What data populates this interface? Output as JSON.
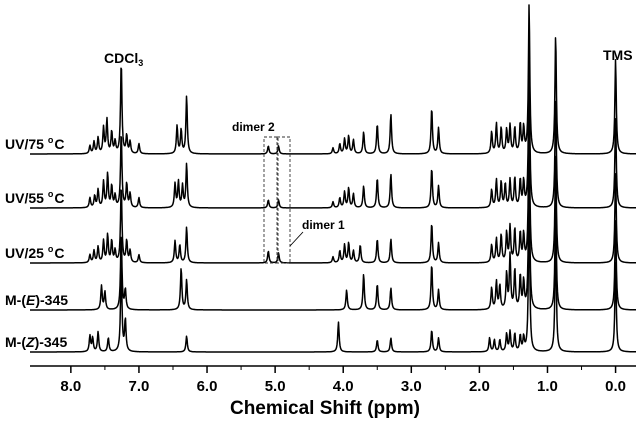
{
  "chart_data": {
    "type": "line",
    "xlabel": "Chemical Shift (ppm)",
    "xlim": [
      8.6,
      -0.3
    ],
    "x_ticks": [
      "8.0",
      "7.0",
      "6.0",
      "5.0",
      "4.0",
      "3.0",
      "2.0",
      "1.0",
      "0.0"
    ],
    "x_tick_values": [
      8.0,
      7.0,
      6.0,
      5.0,
      4.0,
      3.0,
      2.0,
      1.0,
      0.0
    ],
    "reference_labels": {
      "solvent": "CDCl",
      "solvent_subscript": "3",
      "standard": "TMS"
    },
    "annotations": {
      "dimer1": "dimer 1",
      "dimer2": "dimer 2"
    },
    "series": [
      {
        "name": "UV/75 °C",
        "label_main": "UV/75 ",
        "label_deg": "o",
        "label_unit": "C",
        "peaks": [
          [
            7.72,
            8
          ],
          [
            7.66,
            12
          ],
          [
            7.6,
            16
          ],
          [
            7.52,
            26
          ],
          [
            7.47,
            34
          ],
          [
            7.4,
            22
          ],
          [
            7.35,
            12
          ],
          [
            7.26,
            92
          ],
          [
            7.18,
            18
          ],
          [
            7.13,
            12
          ],
          [
            7.0,
            10
          ],
          [
            6.44,
            28
          ],
          [
            6.38,
            24
          ],
          [
            6.3,
            58
          ],
          [
            5.1,
            8
          ],
          [
            4.95,
            8
          ],
          [
            4.15,
            6
          ],
          [
            4.05,
            10
          ],
          [
            3.98,
            15
          ],
          [
            3.92,
            18
          ],
          [
            3.85,
            14
          ],
          [
            3.7,
            22
          ],
          [
            3.5,
            30
          ],
          [
            3.3,
            40
          ],
          [
            2.7,
            46
          ],
          [
            2.6,
            26
          ],
          [
            1.82,
            22
          ],
          [
            1.75,
            30
          ],
          [
            1.68,
            26
          ],
          [
            1.6,
            24
          ],
          [
            1.55,
            28
          ],
          [
            1.48,
            26
          ],
          [
            1.4,
            30
          ],
          [
            1.35,
            26
          ],
          [
            1.27,
            150
          ],
          [
            0.88,
            120
          ],
          [
            0.0,
            95
          ]
        ]
      },
      {
        "name": "UV/55 °C",
        "label_main": "UV/55 ",
        "label_deg": "o",
        "label_unit": "C",
        "peaks": [
          [
            7.72,
            10
          ],
          [
            7.65,
            12
          ],
          [
            7.6,
            18
          ],
          [
            7.52,
            26
          ],
          [
            7.46,
            34
          ],
          [
            7.4,
            22
          ],
          [
            7.35,
            12
          ],
          [
            7.26,
            76
          ],
          [
            7.18,
            24
          ],
          [
            7.13,
            14
          ],
          [
            7.0,
            10
          ],
          [
            6.47,
            24
          ],
          [
            6.42,
            26
          ],
          [
            6.36,
            22
          ],
          [
            6.3,
            44
          ],
          [
            5.1,
            8
          ],
          [
            4.95,
            8
          ],
          [
            4.15,
            6
          ],
          [
            4.05,
            10
          ],
          [
            3.98,
            16
          ],
          [
            3.92,
            20
          ],
          [
            3.85,
            14
          ],
          [
            3.7,
            22
          ],
          [
            3.5,
            30
          ],
          [
            3.3,
            34
          ],
          [
            2.7,
            40
          ],
          [
            2.6,
            22
          ],
          [
            1.82,
            18
          ],
          [
            1.75,
            28
          ],
          [
            1.68,
            26
          ],
          [
            1.62,
            24
          ],
          [
            1.55,
            28
          ],
          [
            1.48,
            30
          ],
          [
            1.4,
            28
          ],
          [
            1.35,
            26
          ],
          [
            1.27,
            150
          ],
          [
            0.88,
            110
          ],
          [
            0.0,
            90
          ]
        ]
      },
      {
        "name": "UV/25 °C",
        "label_main": "UV/25 ",
        "label_deg": "o",
        "label_unit": "C",
        "peaks": [
          [
            7.72,
            8
          ],
          [
            7.66,
            12
          ],
          [
            7.6,
            16
          ],
          [
            7.52,
            22
          ],
          [
            7.46,
            28
          ],
          [
            7.4,
            22
          ],
          [
            7.35,
            12
          ],
          [
            7.26,
            78
          ],
          [
            7.18,
            22
          ],
          [
            7.13,
            12
          ],
          [
            7.0,
            8
          ],
          [
            6.47,
            22
          ],
          [
            6.4,
            18
          ],
          [
            6.3,
            36
          ],
          [
            5.1,
            12
          ],
          [
            4.95,
            10
          ],
          [
            4.15,
            6
          ],
          [
            4.05,
            12
          ],
          [
            3.98,
            18
          ],
          [
            3.92,
            20
          ],
          [
            3.85,
            12
          ],
          [
            3.75,
            18
          ],
          [
            3.5,
            24
          ],
          [
            3.3,
            24
          ],
          [
            2.7,
            40
          ],
          [
            2.6,
            20
          ],
          [
            1.82,
            18
          ],
          [
            1.75,
            24
          ],
          [
            1.68,
            28
          ],
          [
            1.6,
            30
          ],
          [
            1.55,
            36
          ],
          [
            1.48,
            34
          ],
          [
            1.4,
            30
          ],
          [
            1.35,
            28
          ],
          [
            1.27,
            150
          ],
          [
            0.88,
            110
          ],
          [
            0.0,
            90
          ]
        ]
      },
      {
        "name": "M-(E)-345",
        "label_main": "M-(",
        "label_ital": "E",
        "label_end": ")-345",
        "peaks": [
          [
            7.55,
            24
          ],
          [
            7.5,
            18
          ],
          [
            7.26,
            78
          ],
          [
            7.2,
            20
          ],
          [
            6.38,
            42
          ],
          [
            6.3,
            30
          ],
          [
            3.95,
            20
          ],
          [
            3.7,
            36
          ],
          [
            3.5,
            26
          ],
          [
            3.3,
            22
          ],
          [
            2.7,
            46
          ],
          [
            2.6,
            20
          ],
          [
            1.82,
            22
          ],
          [
            1.75,
            28
          ],
          [
            1.7,
            24
          ],
          [
            1.6,
            36
          ],
          [
            1.55,
            54
          ],
          [
            1.48,
            40
          ],
          [
            1.4,
            34
          ],
          [
            1.35,
            28
          ],
          [
            1.27,
            150
          ],
          [
            0.88,
            110
          ],
          [
            0.0,
            90
          ]
        ]
      },
      {
        "name": "M-(Z)-345",
        "label_main": "M-(",
        "label_ital": "Z",
        "label_end": ")-345",
        "peaks": [
          [
            7.72,
            16
          ],
          [
            7.68,
            14
          ],
          [
            7.6,
            20
          ],
          [
            7.45,
            14
          ],
          [
            7.26,
            90
          ],
          [
            7.2,
            32
          ],
          [
            6.3,
            16
          ],
          [
            4.07,
            30
          ],
          [
            3.5,
            12
          ],
          [
            3.3,
            14
          ],
          [
            2.7,
            22
          ],
          [
            2.6,
            14
          ],
          [
            1.85,
            14
          ],
          [
            1.78,
            12
          ],
          [
            1.7,
            12
          ],
          [
            1.6,
            18
          ],
          [
            1.55,
            20
          ],
          [
            1.48,
            18
          ],
          [
            1.4,
            16
          ],
          [
            1.35,
            14
          ],
          [
            1.27,
            150
          ],
          [
            0.88,
            120
          ],
          [
            0.0,
            90
          ]
        ]
      }
    ]
  }
}
